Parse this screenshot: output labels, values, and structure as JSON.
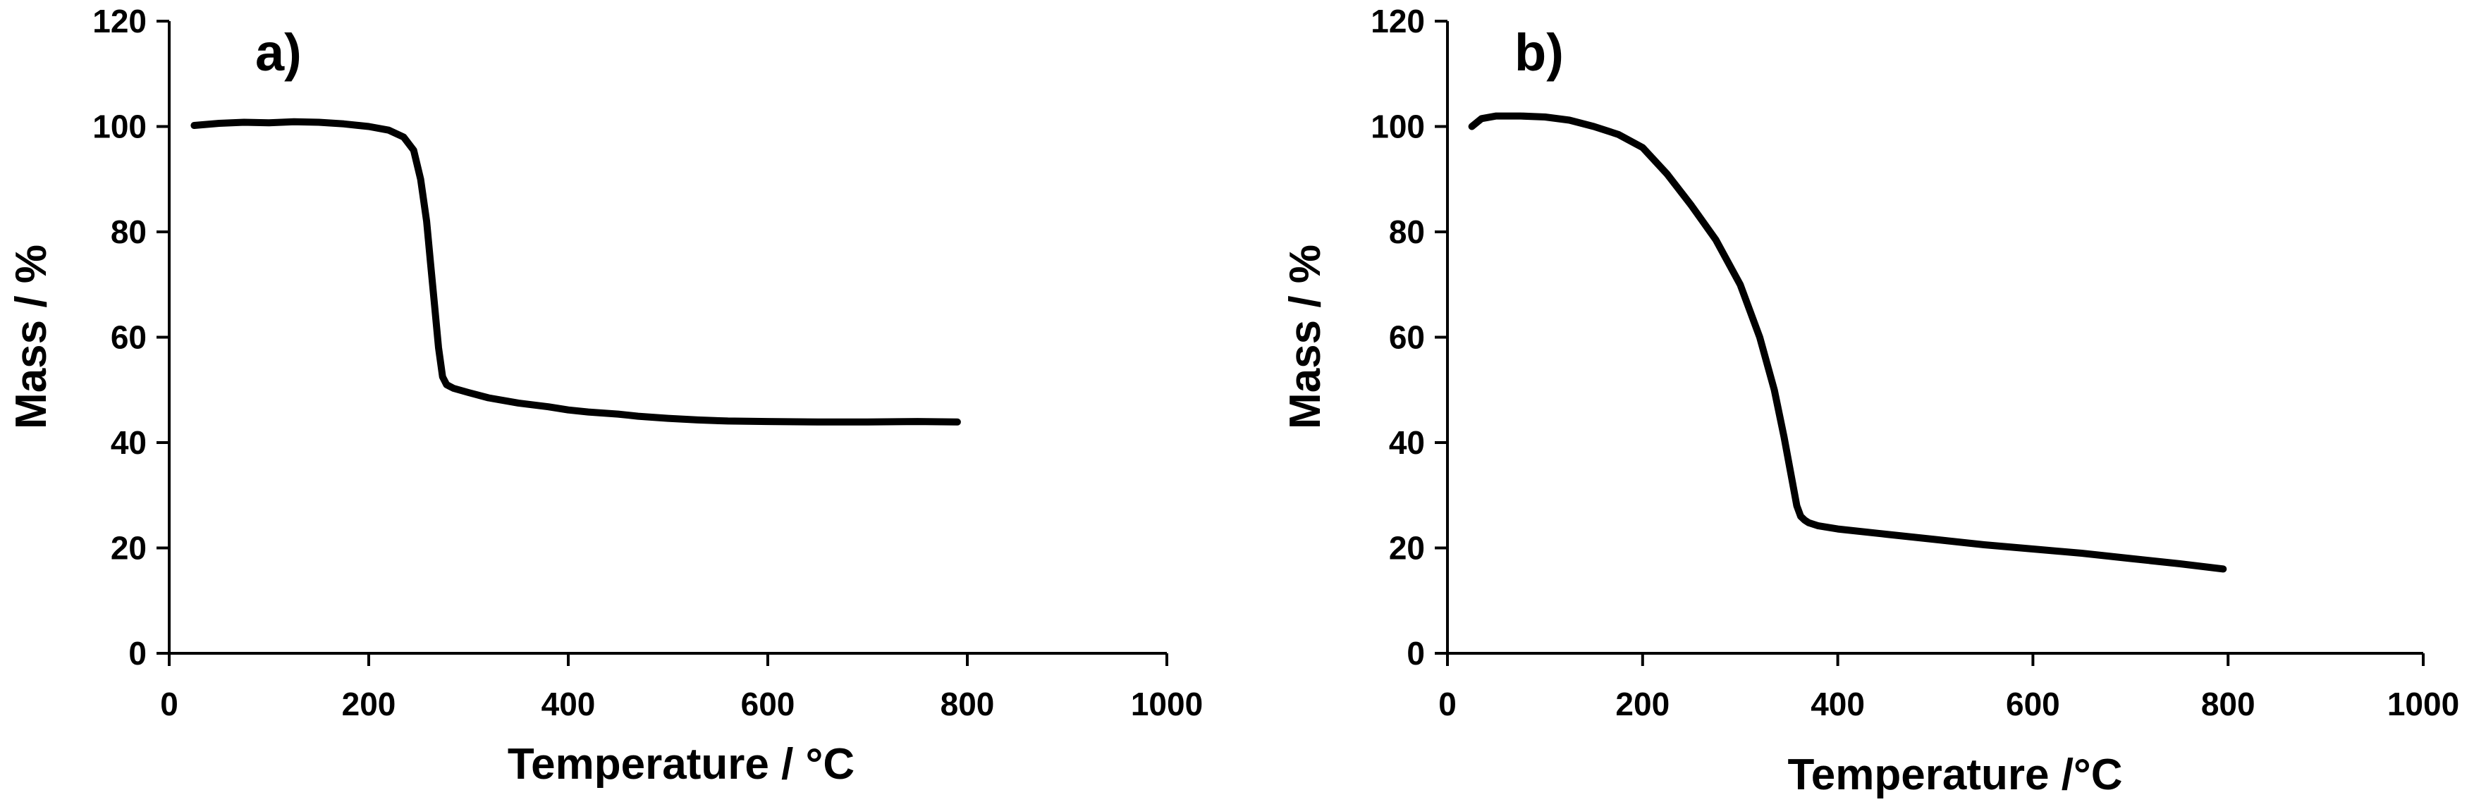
{
  "chart_data": [
    {
      "type": "line",
      "panel_label": "a)",
      "xlabel": "Temperature / °C",
      "ylabel": "Mass / %",
      "xlim": [
        0,
        1000
      ],
      "ylim": [
        0,
        120
      ],
      "xticks": [
        "0",
        "200",
        "400",
        "600",
        "800",
        "1000"
      ],
      "yticks": [
        "0",
        "20",
        "40",
        "60",
        "80",
        "100",
        "120"
      ],
      "grid": false,
      "line_color": "#000000",
      "series": [
        {
          "x": [
            25,
            50,
            75,
            100,
            125,
            150,
            175,
            200,
            220,
            235,
            245,
            252,
            258,
            262,
            266,
            270,
            274,
            278,
            280,
            285,
            300,
            320,
            350,
            380,
            400,
            420,
            450,
            470,
            500,
            530,
            560,
            600,
            650,
            700,
            750,
            790
          ],
          "y": [
            100.2,
            100.6,
            100.8,
            100.7,
            100.9,
            100.8,
            100.5,
            100.0,
            99.3,
            98.0,
            95.5,
            90.0,
            82.0,
            74.0,
            66.0,
            58.0,
            52.5,
            51.0,
            50.8,
            50.3,
            49.5,
            48.5,
            47.5,
            46.8,
            46.2,
            45.8,
            45.4,
            45.0,
            44.6,
            44.3,
            44.1,
            44.0,
            43.9,
            43.9,
            44.0,
            43.9
          ]
        }
      ]
    },
    {
      "type": "line",
      "panel_label": "b)",
      "xlabel": "Temperature /°C",
      "ylabel": "Mass / %",
      "xlim": [
        0,
        1000
      ],
      "ylim": [
        0,
        120
      ],
      "xticks": [
        "0",
        "200",
        "400",
        "600",
        "800",
        "1000"
      ],
      "yticks": [
        "0",
        "20",
        "40",
        "60",
        "80",
        "100",
        "120"
      ],
      "grid": false,
      "line_color": "#000000",
      "series": [
        {
          "x": [
            25,
            35,
            50,
            75,
            100,
            125,
            150,
            175,
            200,
            225,
            250,
            275,
            300,
            320,
            335,
            345,
            352,
            358,
            362,
            366,
            370,
            380,
            400,
            450,
            500,
            550,
            600,
            650,
            700,
            750,
            795
          ],
          "y": [
            100.0,
            101.5,
            102.0,
            102.0,
            101.8,
            101.2,
            100.0,
            98.5,
            96.0,
            91.0,
            85.0,
            78.5,
            70.0,
            60.0,
            50.0,
            41.0,
            34.0,
            28.0,
            26.0,
            25.3,
            24.8,
            24.2,
            23.6,
            22.6,
            21.6,
            20.6,
            19.8,
            19.0,
            18.0,
            17.0,
            16.0
          ]
        }
      ]
    }
  ]
}
